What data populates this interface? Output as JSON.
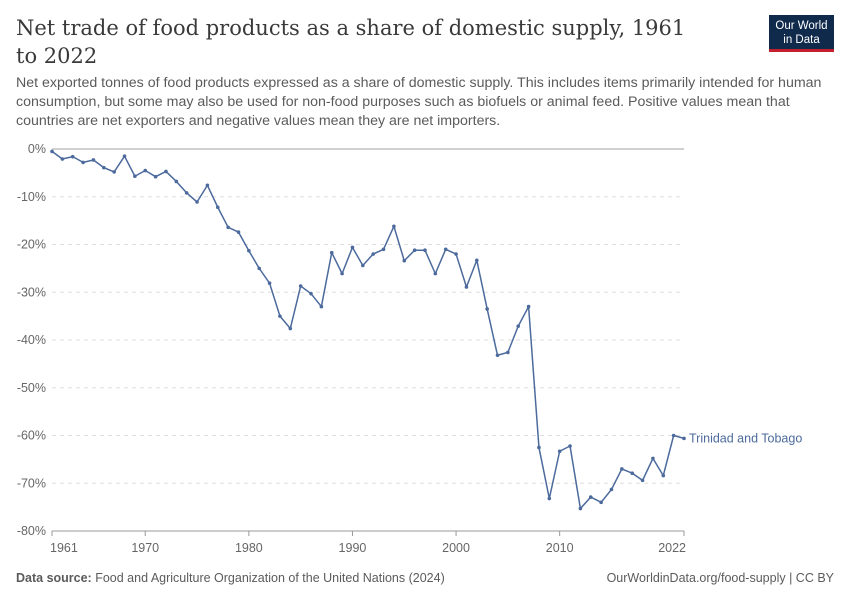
{
  "header": {
    "title": "Net trade of food products as a share of domestic supply, 1961 to 2022",
    "subtitle": "Net exported tonnes of food products expressed as a share of domestic supply. This includes items primarily intended for human consumption, but some may also be used for non-food purposes such as biofuels or animal feed. Positive values mean that countries are net exporters and negative values mean they are net importers.",
    "logo_line1": "Our World",
    "logo_line2": "in Data"
  },
  "footer": {
    "source_label": "Data source:",
    "source_text": "Food and Agriculture Organization of the United Nations (2024)",
    "credit": "OurWorldinData.org/food-supply | CC BY"
  },
  "colors": {
    "series": "#4c6a9c",
    "grid": "#dddddd",
    "zero_line": "#a1a1a1",
    "axis_text": "#666666"
  },
  "chart_data": {
    "type": "line",
    "title": "Net trade of food products as a share of domestic supply, 1961 to 2022",
    "xlabel": "",
    "ylabel": "",
    "xlim": [
      1961,
      2022
    ],
    "ylim": [
      -80,
      0
    ],
    "x_ticks": [
      1961,
      1970,
      1980,
      1990,
      2000,
      2010,
      2022
    ],
    "y_ticks": [
      0,
      -10,
      -20,
      -30,
      -40,
      -50,
      -60,
      -70,
      -80
    ],
    "y_tick_labels": [
      "0%",
      "-10%",
      "-20%",
      "-30%",
      "-40%",
      "-50%",
      "-60%",
      "-70%",
      "-80%"
    ],
    "grid": true,
    "legend": "end-of-line label",
    "series": [
      {
        "name": "Trinidad and Tobago",
        "x": [
          1961,
          1962,
          1963,
          1964,
          1965,
          1966,
          1967,
          1968,
          1969,
          1970,
          1971,
          1972,
          1973,
          1974,
          1975,
          1976,
          1977,
          1978,
          1979,
          1980,
          1981,
          1982,
          1983,
          1984,
          1985,
          1986,
          1987,
          1988,
          1989,
          1990,
          1991,
          1992,
          1993,
          1994,
          1995,
          1996,
          1997,
          1998,
          1999,
          2000,
          2001,
          2002,
          2003,
          2004,
          2005,
          2006,
          2007,
          2008,
          2009,
          2010,
          2011,
          2012,
          2013,
          2014,
          2015,
          2016,
          2017,
          2018,
          2019,
          2020,
          2021,
          2022
        ],
        "y": [
          -0.5,
          -2.1,
          -1.6,
          -2.8,
          -2.3,
          -3.9,
          -4.8,
          -1.5,
          -5.7,
          -4.5,
          -5.8,
          -4.7,
          -6.8,
          -9.2,
          -11.1,
          -7.6,
          -12.2,
          -16.4,
          -17.4,
          -21.3,
          -25.0,
          -28.1,
          -35.0,
          -37.6,
          -28.7,
          -30.3,
          -33.0,
          -21.7,
          -26.1,
          -20.6,
          -24.4,
          -22.0,
          -21.0,
          -16.2,
          -23.4,
          -21.2,
          -21.2,
          -26.1,
          -21.0,
          -22.0,
          -28.9,
          -23.3,
          -33.5,
          -43.2,
          -42.6,
          -37.1,
          -33.0,
          -62.5,
          -73.2,
          -63.3,
          -62.2,
          -75.3,
          -72.9,
          -74.0,
          -71.3,
          -67.0,
          -67.9,
          -69.4,
          -64.8,
          -68.4,
          -60.0,
          -60.6
        ]
      }
    ]
  }
}
